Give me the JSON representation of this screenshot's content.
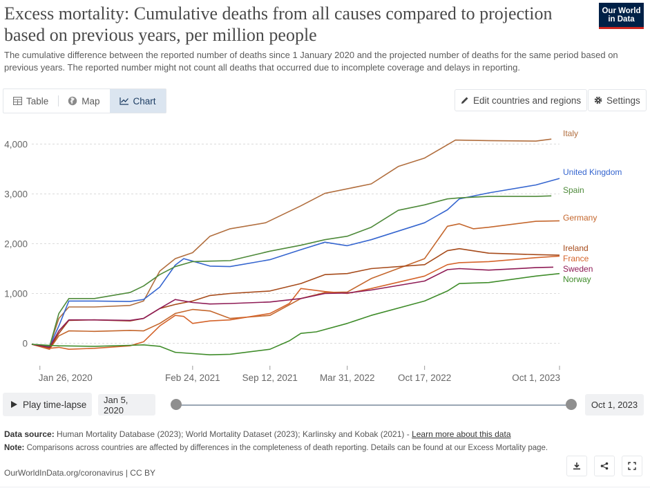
{
  "header": {
    "title": "Excess mortality: Cumulative deaths from all causes compared to projection based on previous years, per million people",
    "subtitle": "The cumulative difference between the reported number of deaths since 1 January 2020 and the projected number of deaths for the same period based on previous years. The reported number might not count all deaths that occurred due to incomplete coverage and delays in reporting.",
    "logo_line1": "Our World",
    "logo_line2": "in Data"
  },
  "tabs": [
    {
      "label": "Table",
      "icon": "table-icon",
      "active": false
    },
    {
      "label": "Map",
      "icon": "globe-icon",
      "active": false
    },
    {
      "label": "Chart",
      "icon": "line-chart-icon",
      "active": true
    }
  ],
  "toolbar": {
    "edit_label": "Edit countries and regions",
    "settings_label": "Settings"
  },
  "timeline": {
    "play_label": "Play time-lapse",
    "start_date": "Jan 5, 2020",
    "end_date": "Oct 1, 2023",
    "start_fraction": 0,
    "end_fraction": 1
  },
  "footer": {
    "source_label": "Data source:",
    "source_text": "Human Mortality Database (2023); World Mortality Dataset (2023); Karlinsky and Kobak (2021) -",
    "source_link": "Learn more about this data",
    "note_label": "Note:",
    "note_text": "Comparisons across countries are affected by differences in the completeness of death reporting. Details can be found at our Excess Mortality page.",
    "credit": "OurWorldInData.org/coronavirus | CC BY"
  },
  "chart_data": {
    "type": "line",
    "xlim": [
      "2020-01-05",
      "2023-10-01"
    ],
    "ylim": [
      -200,
      4200
    ],
    "yticks": [
      0,
      1000,
      2000,
      3000,
      4000
    ],
    "ytick_labels": [
      "0",
      "1,000",
      "2,000",
      "3,000",
      "4,000"
    ],
    "xticks": [
      "2020-01-26",
      "2021-02-24",
      "2021-09-12",
      "2022-03-31",
      "2022-10-17",
      "2023-10-01"
    ],
    "xtick_labels": [
      "Jan 26, 2020",
      "Feb 24, 2021",
      "Sep 12, 2021",
      "Mar 31, 2022",
      "Oct 17, 2022",
      "Oct 1, 2023"
    ],
    "grid": "horizontal dashed",
    "legend": "right, inline labels at line ends",
    "series": [
      {
        "name": "Italy",
        "color": "#b16e3e",
        "label_value": 4000,
        "points": [
          [
            "2020-01-05",
            -20
          ],
          [
            "2020-02-20",
            -60
          ],
          [
            "2020-03-15",
            500
          ],
          [
            "2020-04-10",
            730
          ],
          [
            "2020-06-15",
            730
          ],
          [
            "2020-09-15",
            760
          ],
          [
            "2020-10-20",
            850
          ],
          [
            "2020-12-01",
            1450
          ],
          [
            "2021-01-10",
            1700
          ],
          [
            "2021-02-24",
            1820
          ],
          [
            "2021-04-10",
            2150
          ],
          [
            "2021-06-01",
            2300
          ],
          [
            "2021-09-01",
            2420
          ],
          [
            "2021-12-01",
            2760
          ],
          [
            "2022-02-01",
            3010
          ],
          [
            "2022-06-01",
            3200
          ],
          [
            "2022-08-10",
            3550
          ],
          [
            "2022-10-17",
            3720
          ],
          [
            "2023-01-05",
            4080
          ],
          [
            "2023-04-01",
            4070
          ],
          [
            "2023-08-01",
            4060
          ],
          [
            "2023-09-10",
            4100
          ]
        ]
      },
      {
        "name": "United Kingdom",
        "color": "#3565cf",
        "label_value": 3300,
        "points": [
          [
            "2020-01-05",
            -20
          ],
          [
            "2020-02-20",
            -60
          ],
          [
            "2020-03-15",
            350
          ],
          [
            "2020-04-10",
            850
          ],
          [
            "2020-06-15",
            850
          ],
          [
            "2020-09-15",
            840
          ],
          [
            "2020-10-20",
            880
          ],
          [
            "2020-12-01",
            1130
          ],
          [
            "2021-01-10",
            1570
          ],
          [
            "2021-02-01",
            1700
          ],
          [
            "2021-02-24",
            1650
          ],
          [
            "2021-04-10",
            1550
          ],
          [
            "2021-06-01",
            1540
          ],
          [
            "2021-09-12",
            1680
          ],
          [
            "2021-12-01",
            1880
          ],
          [
            "2022-02-01",
            2030
          ],
          [
            "2022-03-31",
            1960
          ],
          [
            "2022-06-01",
            2080
          ],
          [
            "2022-10-17",
            2420
          ],
          [
            "2022-12-15",
            2680
          ],
          [
            "2023-01-15",
            2900
          ],
          [
            "2023-04-01",
            3020
          ],
          [
            "2023-08-01",
            3180
          ],
          [
            "2023-10-01",
            3310
          ]
        ]
      },
      {
        "name": "Spain",
        "color": "#4e8a3a",
        "label_value": 2950,
        "points": [
          [
            "2020-01-05",
            -20
          ],
          [
            "2020-02-20",
            -70
          ],
          [
            "2020-03-15",
            600
          ],
          [
            "2020-04-10",
            900
          ],
          [
            "2020-06-15",
            900
          ],
          [
            "2020-09-15",
            1020
          ],
          [
            "2020-10-20",
            1150
          ],
          [
            "2020-12-01",
            1380
          ],
          [
            "2021-01-10",
            1540
          ],
          [
            "2021-02-24",
            1640
          ],
          [
            "2021-04-10",
            1650
          ],
          [
            "2021-06-01",
            1660
          ],
          [
            "2021-09-12",
            1850
          ],
          [
            "2021-12-01",
            1970
          ],
          [
            "2022-02-01",
            2080
          ],
          [
            "2022-03-31",
            2150
          ],
          [
            "2022-06-01",
            2330
          ],
          [
            "2022-08-10",
            2670
          ],
          [
            "2022-10-17",
            2780
          ],
          [
            "2022-12-15",
            2900
          ],
          [
            "2023-01-15",
            2920
          ],
          [
            "2023-04-01",
            2950
          ],
          [
            "2023-08-01",
            2950
          ],
          [
            "2023-09-10",
            2960
          ]
        ]
      },
      {
        "name": "Germany",
        "color": "#c4662c",
        "label_value": 2450,
        "points": [
          [
            "2020-01-05",
            -20
          ],
          [
            "2020-02-20",
            -120
          ],
          [
            "2020-03-15",
            150
          ],
          [
            "2020-04-10",
            250
          ],
          [
            "2020-06-15",
            240
          ],
          [
            "2020-09-15",
            260
          ],
          [
            "2020-10-20",
            250
          ],
          [
            "2020-12-01",
            400
          ],
          [
            "2021-01-10",
            600
          ],
          [
            "2021-02-24",
            680
          ],
          [
            "2021-04-10",
            650
          ],
          [
            "2021-06-01",
            500
          ],
          [
            "2021-09-12",
            560
          ],
          [
            "2021-12-01",
            900
          ],
          [
            "2022-02-01",
            1020
          ],
          [
            "2022-03-31",
            1030
          ],
          [
            "2022-06-01",
            1300
          ],
          [
            "2022-10-17",
            1700
          ],
          [
            "2022-12-15",
            2350
          ],
          [
            "2023-01-15",
            2400
          ],
          [
            "2023-02-20",
            2300
          ],
          [
            "2023-04-01",
            2330
          ],
          [
            "2023-08-01",
            2450
          ],
          [
            "2023-10-01",
            2460
          ]
        ]
      },
      {
        "name": "Ireland",
        "color": "#a64a1a",
        "label_value": 1910,
        "points": [
          [
            "2020-01-05",
            -20
          ],
          [
            "2020-02-20",
            -100
          ],
          [
            "2020-03-15",
            200
          ],
          [
            "2020-04-10",
            460
          ],
          [
            "2020-06-15",
            470
          ],
          [
            "2020-09-15",
            450
          ],
          [
            "2020-10-20",
            500
          ],
          [
            "2020-12-01",
            700
          ],
          [
            "2021-01-10",
            780
          ],
          [
            "2021-02-24",
            850
          ],
          [
            "2021-04-10",
            960
          ],
          [
            "2021-06-01",
            1000
          ],
          [
            "2021-09-12",
            1050
          ],
          [
            "2021-12-01",
            1200
          ],
          [
            "2022-02-01",
            1380
          ],
          [
            "2022-03-31",
            1400
          ],
          [
            "2022-06-01",
            1500
          ],
          [
            "2022-10-17",
            1580
          ],
          [
            "2022-12-15",
            1860
          ],
          [
            "2023-01-15",
            1900
          ],
          [
            "2023-04-01",
            1810
          ],
          [
            "2023-08-01",
            1780
          ],
          [
            "2023-10-01",
            1770
          ]
        ]
      },
      {
        "name": "France",
        "color": "#d4632a",
        "label_value": 1730,
        "points": [
          [
            "2020-01-05",
            -20
          ],
          [
            "2020-02-20",
            -100
          ],
          [
            "2020-03-15",
            -80
          ],
          [
            "2020-04-10",
            -120
          ],
          [
            "2020-06-15",
            -100
          ],
          [
            "2020-09-15",
            -50
          ],
          [
            "2020-10-20",
            30
          ],
          [
            "2020-12-01",
            350
          ],
          [
            "2021-01-10",
            560
          ],
          [
            "2021-02-01",
            540
          ],
          [
            "2021-02-24",
            400
          ],
          [
            "2021-04-10",
            450
          ],
          [
            "2021-06-01",
            470
          ],
          [
            "2021-09-12",
            600
          ],
          [
            "2021-11-01",
            800
          ],
          [
            "2021-12-01",
            1100
          ],
          [
            "2022-02-01",
            1040
          ],
          [
            "2022-03-31",
            1000
          ],
          [
            "2022-06-01",
            1100
          ],
          [
            "2022-10-17",
            1350
          ],
          [
            "2022-12-15",
            1580
          ],
          [
            "2023-01-15",
            1620
          ],
          [
            "2023-04-01",
            1640
          ],
          [
            "2023-08-01",
            1720
          ],
          [
            "2023-10-01",
            1750
          ]
        ]
      },
      {
        "name": "Sweden",
        "color": "#8e1b55",
        "label_value": 1540,
        "points": [
          [
            "2020-01-05",
            -20
          ],
          [
            "2020-02-20",
            -80
          ],
          [
            "2020-03-15",
            250
          ],
          [
            "2020-04-10",
            470
          ],
          [
            "2020-06-15",
            470
          ],
          [
            "2020-09-15",
            460
          ],
          [
            "2020-10-20",
            500
          ],
          [
            "2020-12-01",
            700
          ],
          [
            "2021-01-10",
            880
          ],
          [
            "2021-02-24",
            820
          ],
          [
            "2021-04-10",
            790
          ],
          [
            "2021-06-01",
            800
          ],
          [
            "2021-09-12",
            830
          ],
          [
            "2021-12-01",
            900
          ],
          [
            "2022-02-01",
            1000
          ],
          [
            "2022-03-31",
            1010
          ],
          [
            "2022-06-01",
            1070
          ],
          [
            "2022-10-17",
            1250
          ],
          [
            "2022-12-15",
            1480
          ],
          [
            "2023-01-15",
            1500
          ],
          [
            "2023-04-01",
            1470
          ],
          [
            "2023-08-01",
            1520
          ],
          [
            "2023-09-15",
            1530
          ]
        ]
      },
      {
        "name": "Norway",
        "color": "#3f8c2a",
        "label_value": 1360,
        "points": [
          [
            "2020-01-05",
            -20
          ],
          [
            "2020-02-20",
            -40
          ],
          [
            "2020-03-15",
            -50
          ],
          [
            "2020-06-15",
            -60
          ],
          [
            "2020-09-15",
            -40
          ],
          [
            "2020-10-20",
            -30
          ],
          [
            "2020-12-01",
            -60
          ],
          [
            "2021-01-10",
            -180
          ],
          [
            "2021-04-10",
            -230
          ],
          [
            "2021-06-01",
            -220
          ],
          [
            "2021-09-12",
            -120
          ],
          [
            "2021-11-01",
            50
          ],
          [
            "2021-12-01",
            200
          ],
          [
            "2022-01-10",
            230
          ],
          [
            "2022-03-31",
            400
          ],
          [
            "2022-06-01",
            560
          ],
          [
            "2022-10-17",
            850
          ],
          [
            "2022-12-15",
            1050
          ],
          [
            "2023-01-15",
            1200
          ],
          [
            "2023-04-01",
            1220
          ],
          [
            "2023-08-01",
            1350
          ],
          [
            "2023-10-01",
            1400
          ]
        ]
      }
    ]
  }
}
